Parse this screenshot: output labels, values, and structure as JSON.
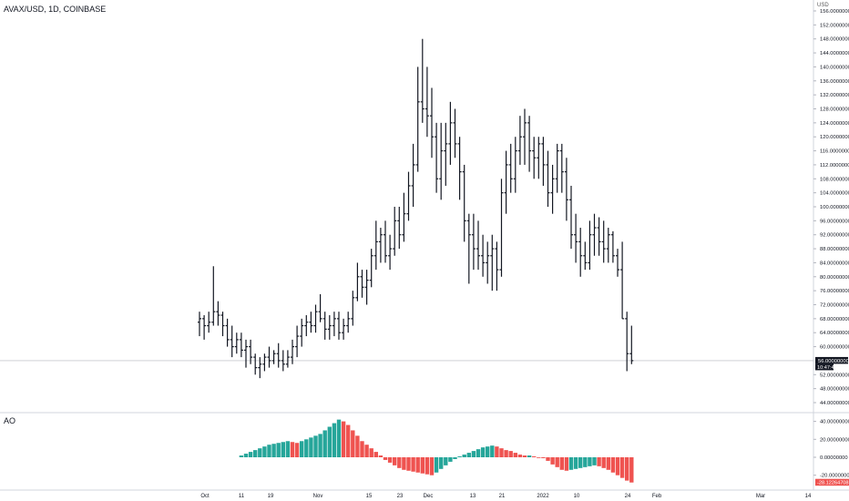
{
  "header": {
    "symbol": "AVAX/USD, 1D, COINBASE"
  },
  "currency": "USD",
  "price_axis_labels": [
    "156.00000000",
    "152.00000000",
    "148.00000000",
    "144.00000000",
    "140.00000000",
    "136.00000000",
    "132.00000000",
    "128.00000000",
    "124.00000000",
    "120.00000000",
    "116.00000000",
    "112.00000000",
    "108.00000000",
    "104.00000000",
    "100.00000000",
    "96.00000000",
    "92.00000000",
    "88.00000000",
    "84.00000000",
    "80.00000000",
    "76.00000000",
    "72.00000000",
    "68.00000000",
    "64.00000000",
    "60.00000000",
    "52.00000000",
    "48.00000000",
    "44.00000000"
  ],
  "current_price_label": "56.00000000",
  "countdown_label": "10:47:41",
  "ao_panel": {
    "label": "AO",
    "axis_labels": [
      "40.00000000",
      "20.00000000",
      "0.00000000",
      "-20.00000000"
    ],
    "current_label": "-28.12264708"
  },
  "time_axis_labels": [
    "Oct",
    "11",
    "19",
    "Nov",
    "15",
    "23",
    "Dec",
    "13",
    "21",
    "2022",
    "10",
    "24",
    "Feb",
    "Mar",
    "14"
  ],
  "colors": {
    "bar": "#131722",
    "ao_up": "#26a69a",
    "ao_down": "#ef5350",
    "price_tag": "#131722",
    "ao_tag": "#ef5350"
  },
  "chart_data": [
    {
      "type": "ohlc",
      "symbol": "AVAX/USD",
      "timeframe": "1D",
      "ylim": [
        44,
        156
      ],
      "bars": [
        [
          67,
          70,
          63,
          68
        ],
        [
          68,
          69,
          62,
          66
        ],
        [
          66,
          70,
          64,
          67
        ],
        [
          67,
          83,
          66,
          70
        ],
        [
          70,
          73,
          66,
          69
        ],
        [
          69,
          70,
          63,
          66
        ],
        [
          66,
          68,
          60,
          62
        ],
        [
          62,
          66,
          57,
          60
        ],
        [
          60,
          64,
          58,
          62
        ],
        [
          62,
          64,
          57,
          59
        ],
        [
          59,
          62,
          54,
          60
        ],
        [
          60,
          62,
          55,
          57
        ],
        [
          57,
          58,
          52,
          54
        ],
        [
          54,
          57,
          51,
          55
        ],
        [
          55,
          58,
          53,
          57
        ],
        [
          57,
          60,
          54,
          56
        ],
        [
          56,
          59,
          55,
          58
        ],
        [
          58,
          61,
          54,
          56
        ],
        [
          56,
          59,
          53,
          55
        ],
        [
          55,
          59,
          54,
          57
        ],
        [
          57,
          62,
          55,
          60
        ],
        [
          60,
          66,
          57,
          63
        ],
        [
          63,
          68,
          60,
          66
        ],
        [
          66,
          69,
          63,
          67
        ],
        [
          67,
          70,
          64,
          66
        ],
        [
          66,
          72,
          64,
          70
        ],
        [
          70,
          75,
          67,
          68
        ],
        [
          68,
          70,
          62,
          65
        ],
        [
          65,
          69,
          62,
          66
        ],
        [
          66,
          70,
          63,
          68
        ],
        [
          68,
          70,
          62,
          64
        ],
        [
          64,
          68,
          62,
          66
        ],
        [
          66,
          70,
          64,
          68
        ],
        [
          68,
          76,
          66,
          74
        ],
        [
          74,
          84,
          73,
          80
        ],
        [
          80,
          82,
          74,
          77
        ],
        [
          77,
          82,
          72,
          79
        ],
        [
          79,
          88,
          77,
          86
        ],
        [
          86,
          96,
          82,
          90
        ],
        [
          90,
          94,
          84,
          92
        ],
        [
          92,
          96,
          84,
          86
        ],
        [
          86,
          92,
          82,
          88
        ],
        [
          88,
          100,
          86,
          96
        ],
        [
          96,
          100,
          88,
          92
        ],
        [
          92,
          104,
          90,
          98
        ],
        [
          98,
          110,
          96,
          106
        ],
        [
          106,
          118,
          100,
          112
        ],
        [
          112,
          140,
          110,
          130
        ],
        [
          130,
          148,
          124,
          128
        ],
        [
          128,
          140,
          120,
          126
        ],
        [
          126,
          134,
          114,
          120
        ],
        [
          120,
          124,
          104,
          108
        ],
        [
          108,
          124,
          102,
          116
        ],
        [
          116,
          124,
          106,
          118
        ],
        [
          118,
          130,
          112,
          124
        ],
        [
          124,
          128,
          114,
          118
        ],
        [
          118,
          120,
          102,
          110
        ],
        [
          110,
          112,
          90,
          96
        ],
        [
          96,
          98,
          78,
          92
        ],
        [
          92,
          98,
          82,
          88
        ],
        [
          88,
          96,
          82,
          86
        ],
        [
          86,
          92,
          80,
          84
        ],
        [
          84,
          90,
          78,
          86
        ],
        [
          86,
          92,
          76,
          88
        ],
        [
          88,
          90,
          76,
          82
        ],
        [
          82,
          108,
          80,
          104
        ],
        [
          104,
          116,
          98,
          112
        ],
        [
          112,
          118,
          104,
          108
        ],
        [
          108,
          120,
          104,
          116
        ],
        [
          116,
          126,
          112,
          120
        ],
        [
          120,
          128,
          112,
          124
        ],
        [
          124,
          126,
          110,
          116
        ],
        [
          116,
          120,
          108,
          114
        ],
        [
          114,
          120,
          108,
          118
        ],
        [
          118,
          120,
          106,
          112
        ],
        [
          112,
          116,
          100,
          104
        ],
        [
          104,
          112,
          98,
          108
        ],
        [
          108,
          118,
          104,
          116
        ],
        [
          116,
          118,
          104,
          110
        ],
        [
          110,
          114,
          96,
          102
        ],
        [
          102,
          106,
          88,
          92
        ],
        [
          92,
          98,
          84,
          90
        ],
        [
          90,
          94,
          80,
          86
        ],
        [
          86,
          90,
          82,
          84
        ],
        [
          84,
          96,
          82,
          92
        ],
        [
          92,
          98,
          86,
          94
        ],
        [
          94,
          97,
          86,
          90
        ],
        [
          90,
          96,
          84,
          88
        ],
        [
          88,
          94,
          84,
          92
        ],
        [
          92,
          93,
          84,
          86
        ],
        [
          86,
          88,
          80,
          82
        ],
        [
          82,
          90,
          68,
          68
        ],
        [
          68,
          70,
          53,
          58
        ],
        [
          58,
          66,
          55,
          56
        ]
      ]
    },
    {
      "type": "bar",
      "title": "AO",
      "ylim": [
        -35,
        45
      ],
      "values": [
        2,
        4,
        6,
        8,
        10,
        12,
        14,
        15,
        16,
        17,
        18,
        17,
        16,
        18,
        20,
        22,
        24,
        26,
        30,
        34,
        38,
        42,
        40,
        36,
        30,
        24,
        18,
        14,
        10,
        6,
        2,
        -3,
        -6,
        -9,
        -12,
        -14,
        -15,
        -16,
        -17,
        -18,
        -19,
        -20,
        -17,
        -13,
        -9,
        -5,
        -2,
        1,
        3,
        5,
        7,
        9,
        11,
        12,
        13,
        12,
        10,
        8,
        7,
        5,
        3,
        2,
        2,
        1,
        0,
        -1,
        -4,
        -8,
        -11,
        -14,
        -15,
        -14,
        -13,
        -12,
        -11,
        -10,
        -9,
        -10,
        -12,
        -14,
        -17,
        -20,
        -23,
        -26,
        -28.12
      ]
    }
  ]
}
